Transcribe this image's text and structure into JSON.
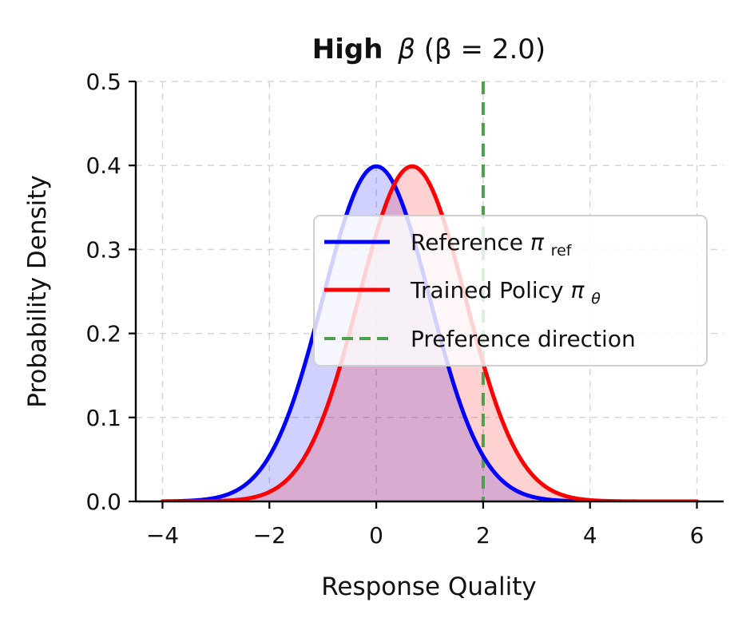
{
  "chart_data": {
    "type": "line",
    "title": {
      "bold_prefix": "High",
      "greek": "β",
      "suffix": " (β = 2.0)"
    },
    "xlabel": "Response Quality",
    "ylabel": "Probability Density",
    "xlim": [
      -4.5,
      6.5
    ],
    "ylim": [
      0,
      0.5
    ],
    "x_ticks": [
      -4,
      -2,
      0,
      2,
      4,
      6
    ],
    "y_ticks": [
      0.0,
      0.1,
      0.2,
      0.3,
      0.4,
      0.5
    ],
    "x_tick_labels": [
      "−4",
      "−2",
      "0",
      "2",
      "4",
      "6"
    ],
    "y_tick_labels": [
      "0.0",
      "0.1",
      "0.2",
      "0.3",
      "0.4",
      "0.5"
    ],
    "grid": true,
    "legend": {
      "position": "right",
      "entries": [
        {
          "label": "Reference ",
          "symbol": "π",
          "subscript": "ref",
          "color": "#0000ff",
          "style": "solid"
        },
        {
          "label": "Trained Policy ",
          "symbol": "π",
          "subscript": "θ",
          "color": "#ff0000",
          "style": "solid"
        },
        {
          "label": "Preference direction",
          "symbol": "",
          "subscript": "",
          "color": "#4c9f4c",
          "style": "dashed"
        }
      ]
    },
    "series": [
      {
        "name": "Reference π_ref",
        "distribution": "normal",
        "mean": 0.0,
        "std": 1.0,
        "x_range": [
          -4,
          6
        ],
        "color": "#0000ff",
        "fill": "#0000ff",
        "fill_opacity": 0.18
      },
      {
        "name": "Trained Policy π_θ",
        "distribution": "normal",
        "mean": 0.67,
        "std": 1.0,
        "x_range": [
          -4,
          6
        ],
        "color": "#ff0000",
        "fill": "#ff0000",
        "fill_opacity": 0.18
      }
    ],
    "vertical_lines": [
      {
        "name": "Preference direction",
        "x": 2.0,
        "color": "#4c9f4c",
        "style": "dashed"
      }
    ]
  }
}
